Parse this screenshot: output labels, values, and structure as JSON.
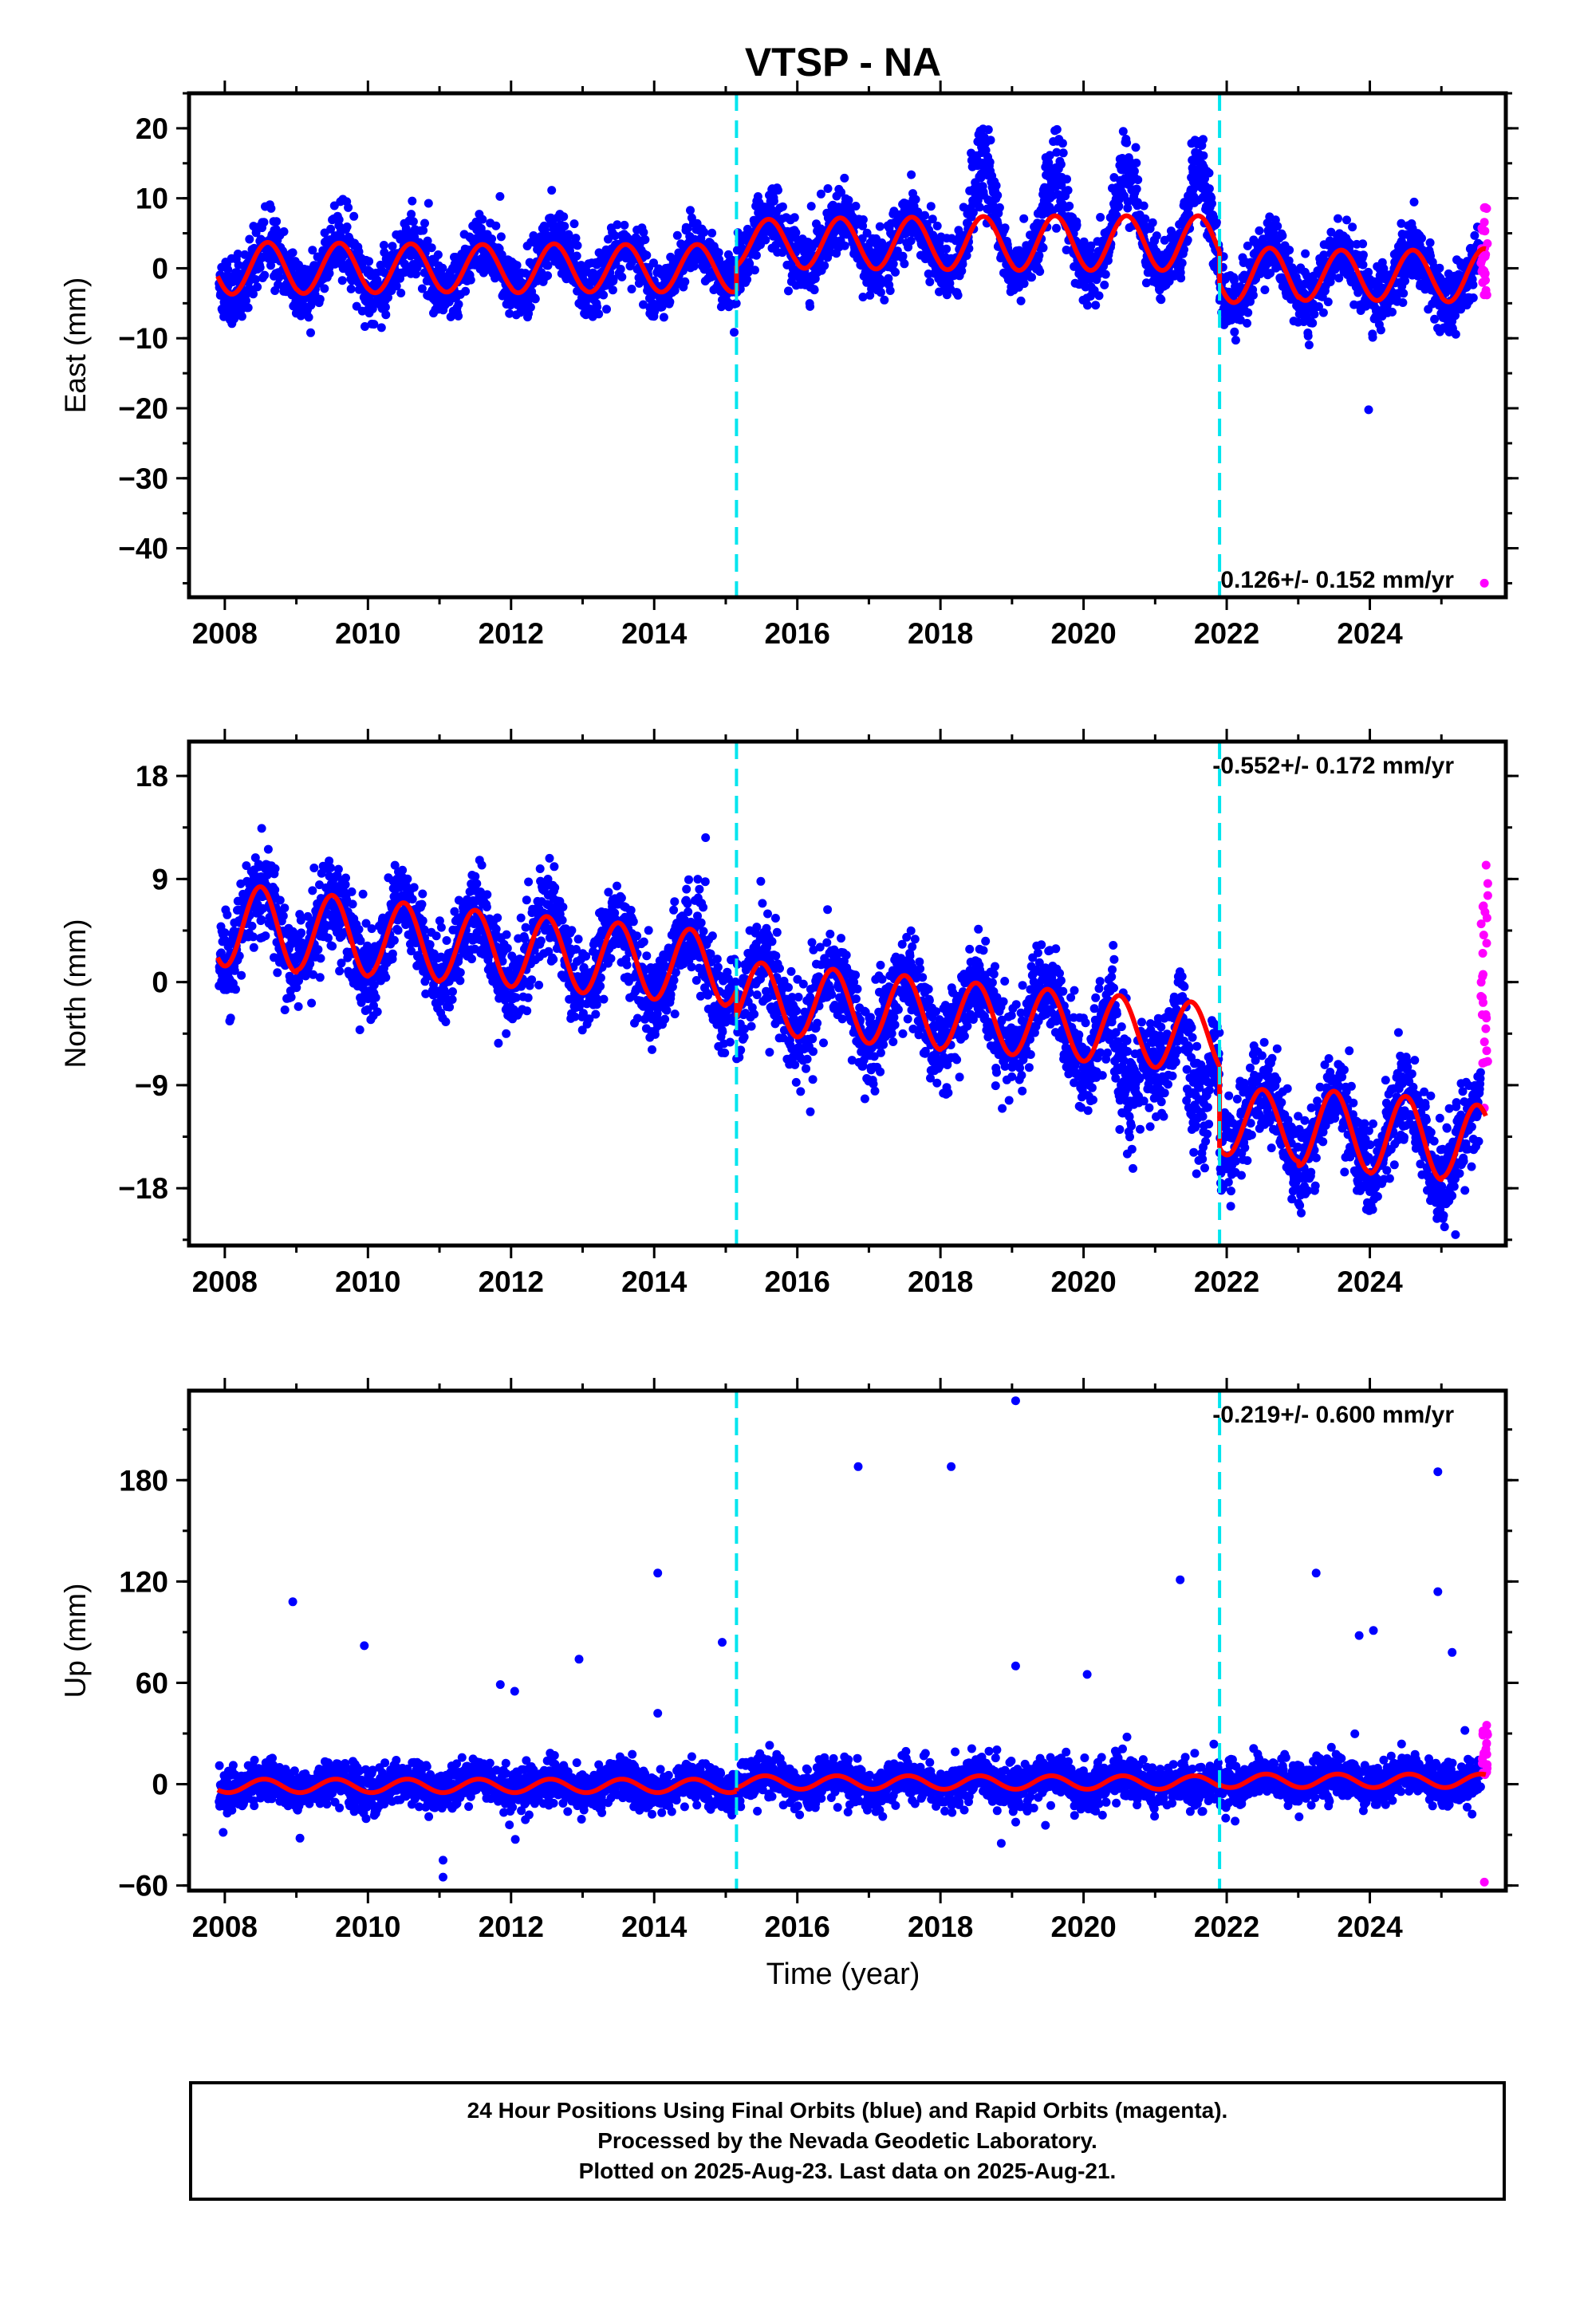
{
  "title": "VTSP - NA",
  "xlabel": "Time (year)",
  "caption": {
    "line1": "24 Hour Positions Using Final Orbits (blue) and Rapid Orbits (magenta).",
    "line2": "Processed by the Nevada Geodetic Laboratory.",
    "line3": "Plotted on 2025-Aug-23. Last data on 2025-Aug-21."
  },
  "colors": {
    "final_orbits": "#0000ff",
    "rapid_orbits": "#ff00ff",
    "model": "#ff0000",
    "breaks": "#00e5ee"
  },
  "chart_data": [
    {
      "type": "scatter",
      "ylabel": "East (mm)",
      "rate_label": "0.126+/- 0.152 mm/yr",
      "xlim": [
        2007.5,
        2025.9
      ],
      "ylim": [
        -47,
        25
      ],
      "yticks": [
        -40,
        -30,
        -20,
        -10,
        0,
        10,
        20
      ],
      "xticks": [
        2008,
        2010,
        2012,
        2014,
        2016,
        2018,
        2020,
        2022,
        2024
      ],
      "xtick_labels": [
        "2008",
        "2010",
        "2012",
        "2014",
        "2016",
        "2018",
        "2020",
        "2022",
        "2024"
      ],
      "breaks": [
        2015.15,
        2021.9
      ],
      "seasonal_amplitude": [
        3.7,
        3.6,
        3.5,
        3.4,
        3.5,
        3.4,
        3.4,
        3.4,
        3.6,
        3.7,
        3.8,
        3.9,
        3.9,
        3.9,
        3.9,
        3.6,
        3.6,
        3.8
      ],
      "segment_offsets": [
        0.0,
        3.6,
        -1.0
      ],
      "scatter_sd": 2.2,
      "episodes": [
        {
          "t": 2018.6,
          "dy": 9,
          "width": 0.22
        },
        {
          "t": 2019.6,
          "dy": 8,
          "width": 0.22
        },
        {
          "t": 2020.6,
          "dy": 8,
          "width": 0.22
        },
        {
          "t": 2021.6,
          "dy": 9,
          "width": 0.18
        }
      ],
      "rapid": {
        "t_start": 2025.55,
        "t_end": 2025.65,
        "y_range": [
          -4,
          9
        ],
        "outlier": -45
      },
      "seed": 11
    },
    {
      "type": "scatter",
      "ylabel": "North (mm)",
      "rate_label": "-0.552+/- 0.172 mm/yr",
      "xlim": [
        2007.5,
        2025.9
      ],
      "ylim": [
        -23,
        21
      ],
      "yticks": [
        -18,
        -9,
        0,
        9,
        18
      ],
      "xticks": [
        2008,
        2010,
        2012,
        2014,
        2016,
        2018,
        2020,
        2022,
        2024
      ],
      "xtick_labels": [
        "2008",
        "2010",
        "2012",
        "2014",
        "2016",
        "2018",
        "2020",
        "2022",
        "2024"
      ],
      "breaks": [
        2015.15,
        2021.9
      ],
      "seasonal_amplitude": [
        3.6,
        3.4,
        3.3,
        3.2,
        3.2,
        3.2,
        3.2,
        3.1,
        3.1,
        3.1,
        3.0,
        3.0,
        3.0,
        3.0,
        3.0,
        3.4,
        3.5,
        3.3
      ],
      "segment_offsets": [
        5.0,
        2.7,
        -4.4
      ],
      "scatter_sd": 2.0,
      "episodes": [
        {
          "t": 2020.6,
          "dy": -9,
          "width": 0.2
        },
        {
          "t": 2021.6,
          "dy": -11,
          "width": 0.2
        }
      ],
      "rapid": {
        "t_start": 2025.55,
        "t_end": 2025.65,
        "y_range": [
          -8,
          12
        ],
        "outlier": -11
      },
      "seed": 23
    },
    {
      "type": "scatter",
      "ylabel": "Up (mm)",
      "rate_label": "-0.219+/- 0.600 mm/yr",
      "xlim": [
        2007.5,
        2025.9
      ],
      "ylim": [
        -63,
        233
      ],
      "yticks": [
        -60,
        0,
        60,
        120,
        180
      ],
      "xticks": [
        2008,
        2010,
        2012,
        2014,
        2016,
        2018,
        2020,
        2022,
        2024
      ],
      "xtick_labels": [
        "2008",
        "2010",
        "2012",
        "2014",
        "2016",
        "2018",
        "2020",
        "2022",
        "2024"
      ],
      "breaks": [
        2015.15,
        2021.9
      ],
      "seasonal_amplitude": [
        4,
        4,
        4,
        4,
        4,
        4,
        4,
        4,
        4,
        4,
        4,
        4,
        4,
        4,
        4,
        4,
        4,
        4
      ],
      "segment_offsets": [
        -1.0,
        1.0,
        2.0
      ],
      "scatter_sd": 6.0,
      "episodes": [
        {
          "t": 2021.6,
          "dy": -10,
          "width": 0.2
        }
      ],
      "outliers": [
        [
          2008.95,
          108
        ],
        [
          2009.95,
          82
        ],
        [
          2011.85,
          59
        ],
        [
          2012.05,
          55
        ],
        [
          2012.95,
          74
        ],
        [
          2014.05,
          42
        ],
        [
          2014.05,
          125
        ],
        [
          2014.95,
          84
        ],
        [
          2016.85,
          188
        ],
        [
          2018.15,
          188
        ],
        [
          2019.05,
          227
        ],
        [
          2019.05,
          70
        ],
        [
          2020.05,
          65
        ],
        [
          2021.35,
          121
        ],
        [
          2023.25,
          125
        ],
        [
          2023.85,
          88
        ],
        [
          2024.05,
          91
        ],
        [
          2024.95,
          185
        ],
        [
          2024.95,
          114
        ],
        [
          2025.15,
          78
        ],
        [
          2011.05,
          -45
        ],
        [
          2011.05,
          -55
        ],
        [
          2009.05,
          -32
        ],
        [
          2018.85,
          -35
        ]
      ],
      "rapid": {
        "t_start": 2025.55,
        "t_end": 2025.65,
        "y_range": [
          5,
          36
        ],
        "outlier": -58
      },
      "seed": 37
    }
  ]
}
